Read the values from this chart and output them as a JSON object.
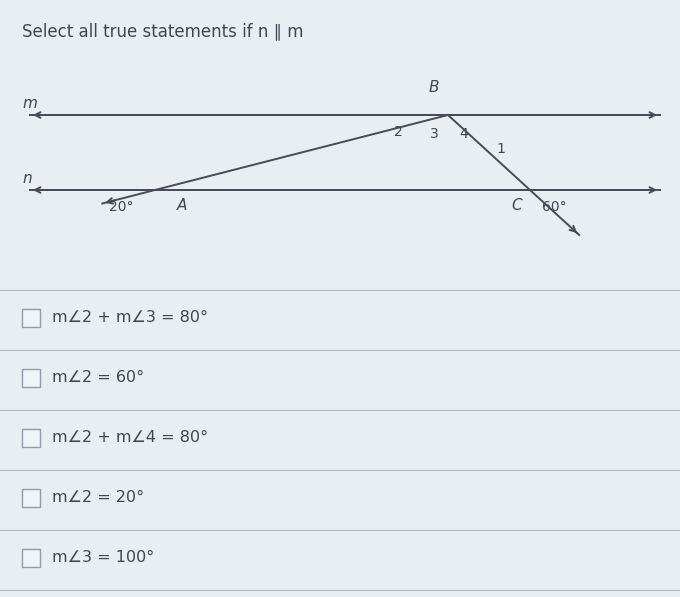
{
  "title": "Select all true statements if n ∥ m",
  "bg_color": "#e8eef2",
  "line_color": "#4a4a5a",
  "text_color": "#444455",
  "checkbox_color": "#f0f4f7",
  "checkbox_edge": "#9999aa",
  "options": [
    "m∠2 + m∠3 = 80°",
    "m∠2 = 60°",
    "m∠2 + m∠4 = 80°",
    "m∠2 = 20°",
    "m∠3 = 100°"
  ],
  "angle_20": "20°",
  "angle_60": "60°",
  "label_A": "A",
  "label_B": "B",
  "label_C": "C",
  "label_m": "m",
  "label_n": "n"
}
